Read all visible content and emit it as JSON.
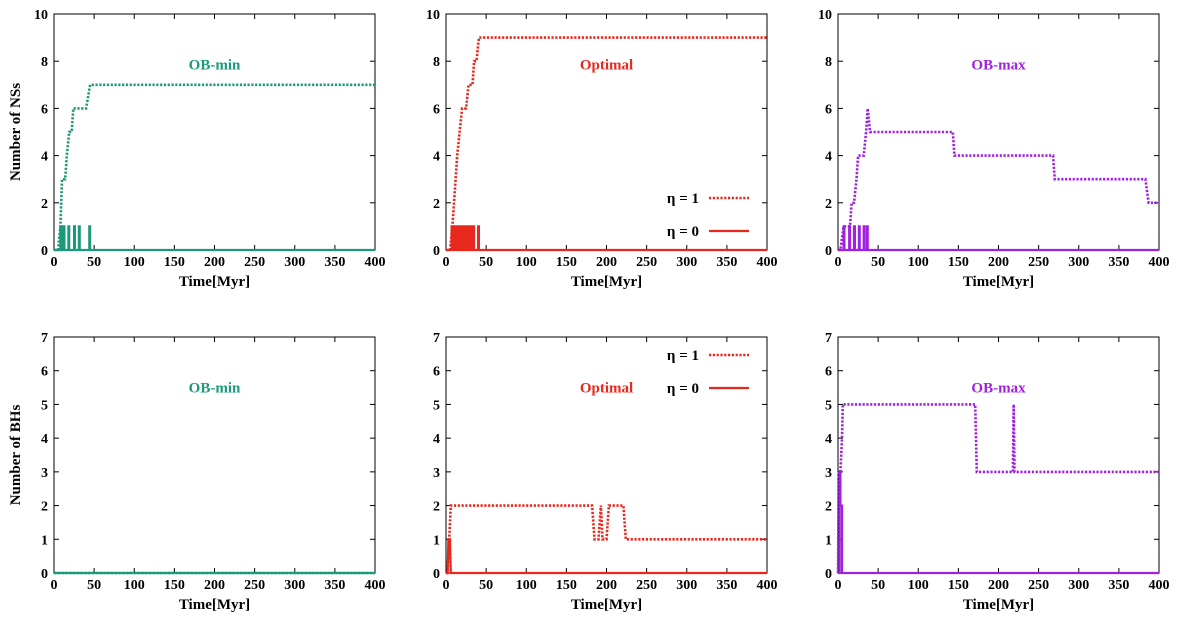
{
  "colors": {
    "OB-min": "#1a9a7a",
    "Optimal": "#e8281e",
    "OB-max": "#a020e0",
    "axis": "#000000"
  },
  "chart_data": [
    {
      "id": "ns-obmin",
      "type": "line",
      "title": "OB-min",
      "color_key": "OB-min",
      "xlabel": "Time[Myr]",
      "ylabel": "Number of NSs",
      "xlim": [
        0,
        400
      ],
      "ylim": [
        0,
        10
      ],
      "xticks": [
        0,
        50,
        100,
        150,
        200,
        250,
        300,
        350,
        400
      ],
      "yticks": [
        0,
        2,
        4,
        6,
        8,
        10
      ],
      "legend": null,
      "series": [
        {
          "eta": 1,
          "style": "dotted",
          "points": [
            [
              0,
              0
            ],
            [
              5,
              0
            ],
            [
              8,
              1
            ],
            [
              10,
              3
            ],
            [
              14,
              3
            ],
            [
              16,
              4
            ],
            [
              19,
              5
            ],
            [
              22,
              5
            ],
            [
              24,
              6
            ],
            [
              28,
              6
            ],
            [
              35,
              6
            ],
            [
              37,
              6
            ],
            [
              40,
              6
            ],
            [
              40,
              6
            ],
            [
              45,
              7
            ],
            [
              400,
              7
            ]
          ]
        },
        {
          "eta": 0,
          "style": "solid",
          "points": [
            [
              0,
              0
            ],
            [
              8,
              0
            ],
            [
              8,
              1
            ],
            [
              10,
              1
            ],
            [
              10,
              0
            ],
            [
              11,
              0
            ],
            [
              11,
              1
            ],
            [
              13,
              1
            ],
            [
              13,
              0
            ],
            [
              18,
              0
            ],
            [
              18,
              1
            ],
            [
              19,
              1
            ],
            [
              19,
              0
            ],
            [
              25,
              0
            ],
            [
              25,
              1
            ],
            [
              26,
              1
            ],
            [
              26,
              0
            ],
            [
              31,
              0
            ],
            [
              31,
              1
            ],
            [
              32,
              1
            ],
            [
              32,
              0
            ],
            [
              44,
              0
            ],
            [
              44,
              1
            ],
            [
              45,
              1
            ],
            [
              45,
              0
            ],
            [
              400,
              0
            ]
          ]
        }
      ]
    },
    {
      "id": "ns-optimal",
      "type": "line",
      "title": "Optimal",
      "color_key": "Optimal",
      "xlabel": "Time[Myr]",
      "ylabel": "",
      "xlim": [
        0,
        400
      ],
      "ylim": [
        0,
        10
      ],
      "xticks": [
        0,
        50,
        100,
        150,
        200,
        250,
        300,
        350,
        400
      ],
      "yticks": [
        0,
        2,
        4,
        6,
        8,
        10
      ],
      "legend": {
        "placement": "lower-right",
        "labels": [
          "η = 1",
          "η = 0"
        ]
      },
      "series": [
        {
          "eta": 1,
          "style": "dotted",
          "points": [
            [
              0,
              0
            ],
            [
              5,
              0
            ],
            [
              8,
              1
            ],
            [
              10,
              2
            ],
            [
              12,
              3
            ],
            [
              14,
              4
            ],
            [
              17,
              5
            ],
            [
              20,
              6
            ],
            [
              25,
              6
            ],
            [
              28,
              7
            ],
            [
              33,
              7
            ],
            [
              35,
              8
            ],
            [
              38,
              8
            ],
            [
              41,
              9
            ],
            [
              45,
              9
            ],
            [
              400,
              9
            ]
          ]
        },
        {
          "eta": 0,
          "style": "solid",
          "points": [
            [
              0,
              0
            ],
            [
              7,
              0
            ],
            [
              7,
              1
            ],
            [
              8,
              1
            ],
            [
              8,
              0
            ],
            [
              10,
              0
            ],
            [
              10,
              1
            ],
            [
              11,
              1
            ],
            [
              11,
              0
            ],
            [
              13,
              0
            ],
            [
              13,
              1
            ],
            [
              14,
              1
            ],
            [
              14,
              0
            ],
            [
              16,
              0
            ],
            [
              16,
              1
            ],
            [
              17,
              1
            ],
            [
              17,
              0
            ],
            [
              19,
              0
            ],
            [
              19,
              1
            ],
            [
              20,
              1
            ],
            [
              20,
              0
            ],
            [
              22,
              0
            ],
            [
              22,
              1
            ],
            [
              23,
              1
            ],
            [
              23,
              0
            ],
            [
              25,
              0
            ],
            [
              25,
              1
            ],
            [
              26,
              1
            ],
            [
              26,
              0
            ],
            [
              28,
              0
            ],
            [
              28,
              1
            ],
            [
              29,
              1
            ],
            [
              29,
              0
            ],
            [
              31,
              0
            ],
            [
              31,
              1
            ],
            [
              32,
              1
            ],
            [
              32,
              0
            ],
            [
              34,
              0
            ],
            [
              34,
              1
            ],
            [
              35,
              1
            ],
            [
              35,
              0
            ],
            [
              40,
              0
            ],
            [
              40,
              1
            ],
            [
              41,
              1
            ],
            [
              41,
              0
            ],
            [
              400,
              0
            ]
          ]
        }
      ]
    },
    {
      "id": "ns-obmax",
      "type": "line",
      "title": "OB-max",
      "color_key": "OB-max",
      "xlabel": "Time[Myr]",
      "ylabel": "",
      "xlim": [
        0,
        400
      ],
      "ylim": [
        0,
        10
      ],
      "xticks": [
        0,
        50,
        100,
        150,
        200,
        250,
        300,
        350,
        400
      ],
      "yticks": [
        0,
        2,
        4,
        6,
        8,
        10
      ],
      "legend": null,
      "series": [
        {
          "eta": 1,
          "style": "dotted",
          "points": [
            [
              0,
              0
            ],
            [
              3,
              0
            ],
            [
              7,
              1
            ],
            [
              15,
              1
            ],
            [
              17,
              2
            ],
            [
              20,
              2
            ],
            [
              23,
              3
            ],
            [
              25,
              4
            ],
            [
              32,
              4
            ],
            [
              35,
              5
            ],
            [
              37,
              6
            ],
            [
              40,
              5
            ],
            [
              143,
              5
            ],
            [
              145,
              4
            ],
            [
              268,
              4
            ],
            [
              270,
              3
            ],
            [
              383,
              3
            ],
            [
              387,
              2
            ],
            [
              400,
              2
            ]
          ]
        },
        {
          "eta": 0,
          "style": "solid",
          "points": [
            [
              0,
              0
            ],
            [
              7,
              0
            ],
            [
              7,
              1
            ],
            [
              8,
              1
            ],
            [
              8,
              0
            ],
            [
              14,
              0
            ],
            [
              14,
              1
            ],
            [
              15,
              1
            ],
            [
              15,
              0
            ],
            [
              20,
              0
            ],
            [
              20,
              1
            ],
            [
              21,
              1
            ],
            [
              21,
              0
            ],
            [
              26,
              0
            ],
            [
              26,
              1
            ],
            [
              27,
              1
            ],
            [
              27,
              0
            ],
            [
              32,
              0
            ],
            [
              32,
              1
            ],
            [
              33,
              1
            ],
            [
              33,
              0
            ],
            [
              36,
              0
            ],
            [
              36,
              1
            ],
            [
              37,
              1
            ],
            [
              37,
              0
            ],
            [
              400,
              0
            ]
          ]
        }
      ]
    },
    {
      "id": "bh-obmin",
      "type": "line",
      "title": "OB-min",
      "color_key": "OB-min",
      "xlabel": "Time[Myr]",
      "ylabel": "Number of BHs",
      "xlim": [
        0,
        400
      ],
      "ylim": [
        0,
        7
      ],
      "xticks": [
        0,
        50,
        100,
        150,
        200,
        250,
        300,
        350,
        400
      ],
      "yticks": [
        0,
        1,
        2,
        3,
        4,
        5,
        6,
        7
      ],
      "legend": null,
      "series": [
        {
          "eta": 1,
          "style": "dotted",
          "points": [
            [
              0,
              0
            ],
            [
              400,
              0
            ]
          ]
        },
        {
          "eta": 0,
          "style": "solid",
          "points": [
            [
              0,
              0
            ],
            [
              400,
              0
            ]
          ]
        }
      ]
    },
    {
      "id": "bh-optimal",
      "type": "line",
      "title": "Optimal",
      "color_key": "Optimal",
      "xlabel": "Time[Myr]",
      "ylabel": "",
      "xlim": [
        0,
        400
      ],
      "ylim": [
        0,
        7
      ],
      "xticks": [
        0,
        50,
        100,
        150,
        200,
        250,
        300,
        350,
        400
      ],
      "yticks": [
        0,
        1,
        2,
        3,
        4,
        5,
        6,
        7
      ],
      "legend": {
        "placement": "upper-right",
        "labels": [
          "η = 1",
          "η = 0"
        ]
      },
      "series": [
        {
          "eta": 1,
          "style": "dotted",
          "points": [
            [
              0,
              0
            ],
            [
              2,
              0
            ],
            [
              4,
              1
            ],
            [
              6,
              2
            ],
            [
              182,
              2
            ],
            [
              185,
              1
            ],
            [
              190,
              1
            ],
            [
              193,
              2
            ],
            [
              195,
              1
            ],
            [
              200,
              1
            ],
            [
              203,
              2
            ],
            [
              221,
              2
            ],
            [
              224,
              1
            ],
            [
              400,
              1
            ]
          ]
        },
        {
          "eta": 0,
          "style": "solid",
          "points": [
            [
              0,
              0
            ],
            [
              2,
              0
            ],
            [
              3,
              1
            ],
            [
              5,
              1
            ],
            [
              6,
              0
            ],
            [
              400,
              0
            ]
          ]
        }
      ]
    },
    {
      "id": "bh-obmax",
      "type": "line",
      "title": "OB-max",
      "color_key": "OB-max",
      "xlabel": "Time[Myr]",
      "ylabel": "",
      "xlim": [
        0,
        400
      ],
      "ylim": [
        0,
        7
      ],
      "xticks": [
        0,
        50,
        100,
        150,
        200,
        250,
        300,
        350,
        400
      ],
      "yticks": [
        0,
        1,
        2,
        3,
        4,
        5,
        6,
        7
      ],
      "legend": null,
      "series": [
        {
          "eta": 1,
          "style": "dotted",
          "points": [
            [
              0,
              0
            ],
            [
              1,
              3
            ],
            [
              3,
              3
            ],
            [
              5,
              4
            ],
            [
              6,
              5
            ],
            [
              171,
              5
            ],
            [
              173,
              3
            ],
            [
              218,
              3
            ],
            [
              219,
              5
            ],
            [
              220,
              3
            ],
            [
              400,
              3
            ]
          ]
        },
        {
          "eta": 0,
          "style": "solid",
          "points": [
            [
              0,
              0
            ],
            [
              2,
              0
            ],
            [
              2,
              3
            ],
            [
              3,
              3
            ],
            [
              3,
              2
            ],
            [
              5,
              2
            ],
            [
              5,
              0
            ],
            [
              400,
              0
            ]
          ]
        }
      ]
    }
  ]
}
